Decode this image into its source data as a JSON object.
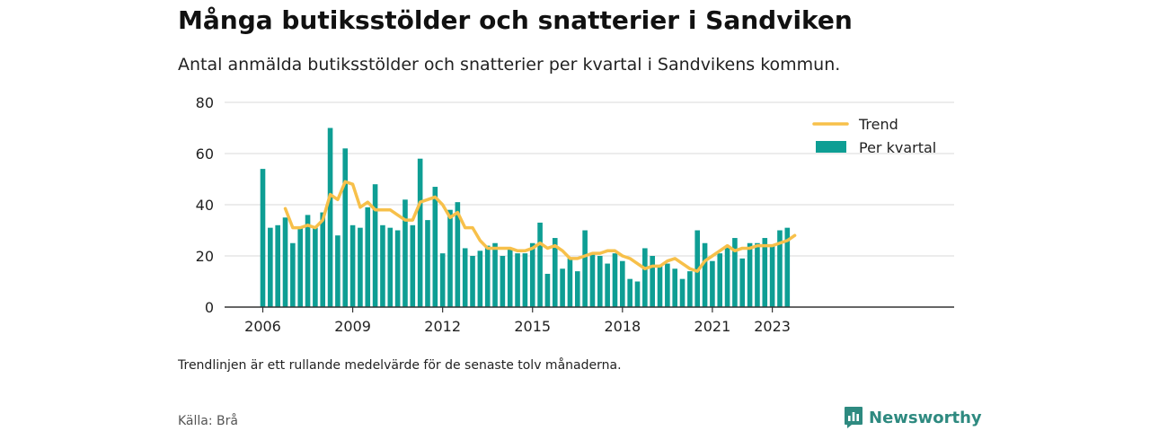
{
  "header": {
    "title": "Många butiksstölder och snatterier i Sandviken",
    "subtitle": "Antal anmälda butiksstölder och snatterier per kvartal i Sandvikens kommun."
  },
  "footer": {
    "note": "Trendlinjen är ett rullande medelvärde för de senaste tolv månaderna.",
    "source": "Källa: Brå",
    "brand": "Newsworthy",
    "brand_icon": "newsworthy-logo-icon"
  },
  "colors": {
    "bar": "#0e9e94",
    "trend": "#f7c04a",
    "axis": "#333333",
    "grid": "#d9d9d9",
    "brand": "#2e8a80"
  },
  "chart_data": {
    "type": "bar",
    "x_unit": "quarter",
    "x": [
      "2006 Q1",
      "2006 Q2",
      "2006 Q3",
      "2006 Q4",
      "2007 Q1",
      "2007 Q2",
      "2007 Q3",
      "2007 Q4",
      "2008 Q1",
      "2008 Q2",
      "2008 Q3",
      "2008 Q4",
      "2009 Q1",
      "2009 Q2",
      "2009 Q3",
      "2009 Q4",
      "2010 Q1",
      "2010 Q2",
      "2010 Q3",
      "2010 Q4",
      "2011 Q1",
      "2011 Q2",
      "2011 Q3",
      "2011 Q4",
      "2012 Q1",
      "2012 Q2",
      "2012 Q3",
      "2012 Q4",
      "2013 Q1",
      "2013 Q2",
      "2013 Q3",
      "2013 Q4",
      "2014 Q1",
      "2014 Q2",
      "2014 Q3",
      "2014 Q4",
      "2015 Q1",
      "2015 Q2",
      "2015 Q3",
      "2015 Q4",
      "2016 Q1",
      "2016 Q2",
      "2016 Q3",
      "2016 Q4",
      "2017 Q1",
      "2017 Q2",
      "2017 Q3",
      "2017 Q4",
      "2018 Q1",
      "2018 Q2",
      "2018 Q3",
      "2018 Q4",
      "2019 Q1",
      "2019 Q2",
      "2019 Q3",
      "2019 Q4",
      "2020 Q1",
      "2020 Q2",
      "2020 Q3",
      "2020 Q4",
      "2021 Q1",
      "2021 Q2",
      "2021 Q3",
      "2021 Q4",
      "2022 Q1",
      "2022 Q2",
      "2022 Q3",
      "2022 Q4",
      "2023 Q1",
      "2023 Q2",
      "2023 Q3",
      "2023 Q4"
    ],
    "series": [
      {
        "name": "Per kvartal",
        "type": "bar",
        "values": [
          54,
          31,
          32,
          35,
          25,
          31,
          36,
          31,
          37,
          70,
          28,
          62,
          32,
          31,
          39,
          48,
          32,
          31,
          30,
          42,
          32,
          58,
          34,
          47,
          21,
          38,
          41,
          23,
          20,
          22,
          24,
          25,
          20,
          23,
          21,
          21,
          25,
          33,
          13,
          27,
          15,
          19,
          14,
          30,
          21,
          20,
          17,
          21,
          18,
          11,
          10,
          23,
          20,
          16,
          17,
          15,
          11,
          14,
          30,
          25,
          18,
          21,
          24,
          27,
          19,
          25,
          25,
          27,
          24,
          30,
          31,
          null
        ]
      },
      {
        "name": "Trend",
        "type": "line",
        "values": [
          null,
          null,
          null,
          38.5,
          31,
          31,
          32,
          31,
          34,
          44,
          42,
          49,
          48,
          39,
          41,
          38,
          38,
          38,
          36,
          34,
          34,
          41,
          42,
          43,
          40,
          35,
          37,
          31,
          31,
          26,
          23,
          23,
          23,
          23,
          22,
          22,
          23,
          25,
          23,
          24,
          22,
          19,
          19,
          20,
          21,
          21,
          22,
          22,
          20,
          19,
          17,
          15,
          16,
          16,
          18,
          19,
          17,
          15,
          14,
          18,
          20,
          22,
          24,
          22,
          23,
          23,
          24,
          24,
          24,
          25,
          26,
          28
        ]
      }
    ],
    "xticks": [
      "2006",
      "2009",
      "2012",
      "2015",
      "2018",
      "2021",
      "2023"
    ],
    "yticks": [
      "0",
      "20",
      "40",
      "60",
      "80"
    ],
    "ylim": [
      0,
      80
    ],
    "xlabel": "",
    "ylabel": "",
    "grid": "horizontal",
    "legend": "top-right"
  }
}
